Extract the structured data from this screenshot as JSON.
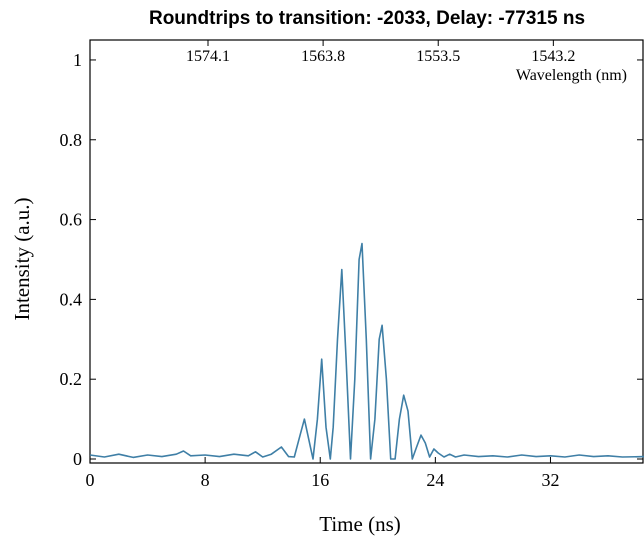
{
  "chart_data": {
    "type": "line",
    "title": "Roundtrips to transition: -2033, Delay: -77315 ns",
    "xlabel": "Time (ns)",
    "ylabel": "Intensity (a.u.)",
    "x2label": "Wavelength (nm)",
    "xlim": [
      0,
      38.5
    ],
    "ylim": [
      -0.01,
      1.05
    ],
    "x_ticks": [
      0,
      8,
      16,
      24,
      32
    ],
    "x_tick_labels": [
      "0",
      "8",
      "16",
      "24",
      "32"
    ],
    "y_ticks": [
      0,
      0.2,
      0.4,
      0.6,
      0.8,
      1
    ],
    "y_tick_labels": [
      "0",
      "0.2",
      "0.4",
      "0.6",
      "0.8",
      "1"
    ],
    "top_ticks": [
      8.2,
      16.2,
      24.2,
      32.2
    ],
    "top_tick_labels": [
      "1574.1",
      "1563.8",
      "1553.5",
      "1543.2"
    ],
    "grid": false,
    "line_color": "#3f7fa6",
    "series": [
      {
        "x": [
          0,
          1,
          2,
          3,
          4,
          5,
          6,
          6.5,
          7,
          8,
          9,
          10,
          11,
          11.5,
          12,
          12.6,
          13.3,
          13.8,
          14.2,
          14.6,
          14.9,
          15.2,
          15.5,
          15.8,
          16.1,
          16.4,
          16.7,
          16.9,
          17.2,
          17.5,
          17.8,
          18.1,
          18.4,
          18.7,
          18.9,
          19.2,
          19.5,
          19.8,
          20.1,
          20.3,
          20.6,
          20.9,
          21.2,
          21.5,
          21.8,
          22.1,
          22.4,
          22.7,
          23.0,
          23.3,
          23.6,
          23.9,
          24.2,
          24.6,
          25.0,
          25.4,
          26.0,
          27,
          28,
          29,
          30,
          31,
          32,
          33,
          34,
          35,
          36,
          37,
          38.5
        ],
        "y": [
          0.01,
          0.005,
          0.012,
          0.004,
          0.01,
          0.006,
          0.012,
          0.02,
          0.008,
          0.01,
          0.006,
          0.012,
          0.008,
          0.018,
          0.005,
          0.012,
          0.03,
          0.006,
          0.005,
          0.06,
          0.1,
          0.05,
          0.0,
          0.1,
          0.25,
          0.08,
          0.0,
          0.08,
          0.3,
          0.475,
          0.25,
          0.0,
          0.2,
          0.5,
          0.54,
          0.3,
          0.0,
          0.1,
          0.3,
          0.335,
          0.2,
          0.0,
          0.0,
          0.1,
          0.16,
          0.12,
          0.0,
          0.03,
          0.06,
          0.04,
          0.005,
          0.025,
          0.015,
          0.005,
          0.012,
          0.005,
          0.01,
          0.006,
          0.008,
          0.005,
          0.01,
          0.006,
          0.008,
          0.005,
          0.01,
          0.006,
          0.008,
          0.005,
          0.006
        ]
      }
    ]
  }
}
